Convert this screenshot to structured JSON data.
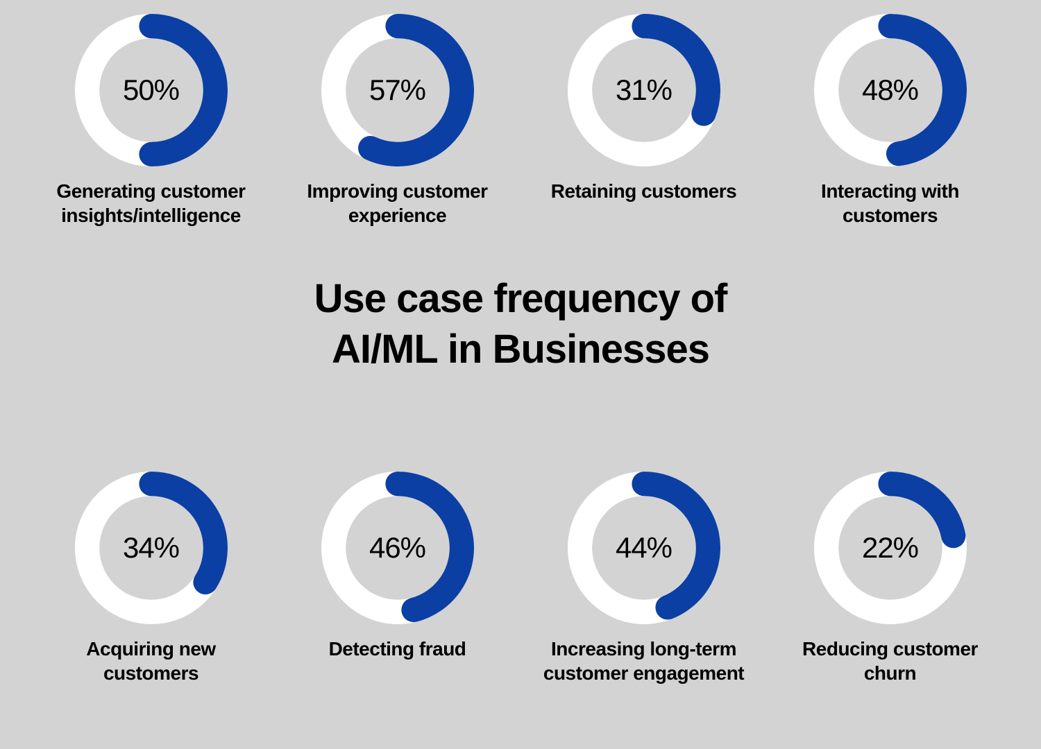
{
  "title": {
    "line1": "Use case frequency of",
    "line2": "AI/ML in Businesses",
    "fontsize": 58,
    "fontweight": 800,
    "color": "#000000"
  },
  "chart_style": {
    "type": "donut-gauge",
    "ring_background_color": "#ffffff",
    "ring_fill_color": "#0b3fa4",
    "ring_thickness": 32,
    "outer_radius": 100,
    "start_angle_deg": 0,
    "direction": "clockwise",
    "value_fontsize": 42,
    "value_fontweight": 400,
    "value_color": "#000000",
    "label_fontsize": 28,
    "label_fontweight": 700,
    "label_color": "#000000",
    "background_color": "#d3d3d3"
  },
  "top_row": [
    {
      "value": 50,
      "display": "50%",
      "label": "Generating customer insights/intelligence"
    },
    {
      "value": 57,
      "display": "57%",
      "label": "Improving customer experience"
    },
    {
      "value": 31,
      "display": "31%",
      "label": "Retaining customers"
    },
    {
      "value": 48,
      "display": "48%",
      "label": "Interacting with customers"
    }
  ],
  "bottom_row": [
    {
      "value": 34,
      "display": "34%",
      "label": "Acquiring new customers"
    },
    {
      "value": 46,
      "display": "46%",
      "label": "Detecting fraud"
    },
    {
      "value": 44,
      "display": "44%",
      "label": "Increasing long-term customer engagement"
    },
    {
      "value": 22,
      "display": "22%",
      "label": "Reducing customer churn"
    }
  ]
}
